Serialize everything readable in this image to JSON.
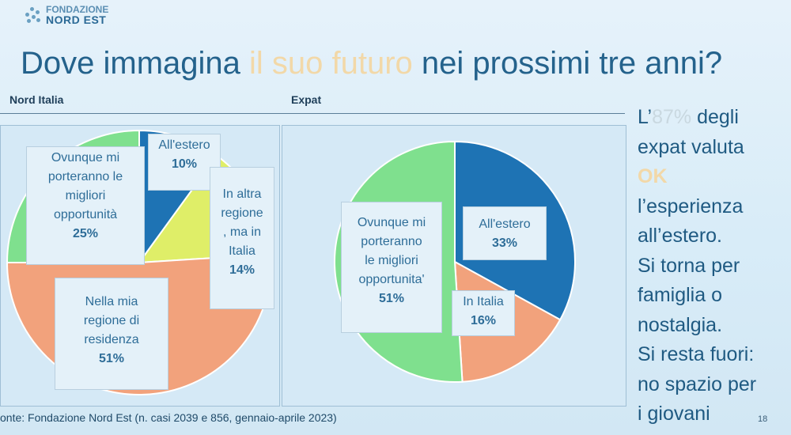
{
  "logo": {
    "line1": "FONDAZIONE",
    "line2a": "NORD",
    "line2b": "EST"
  },
  "title": {
    "part1": "Dove immagina ",
    "highlight": "il suo futuro",
    "part2": " nei prossimi tre anni?"
  },
  "chart_data": [
    {
      "type": "pie",
      "title": "Nord Italia",
      "slices": [
        {
          "label": "All'estero",
          "value": 10,
          "pct_text": "10%",
          "color": "#1e73b4"
        },
        {
          "label": "In altra\nregione\n, ma in\nItalia",
          "value": 14,
          "pct_text": "14%",
          "color": "#dfee68"
        },
        {
          "label": "Nella mia\nregione di\nresidenza",
          "value": 51,
          "pct_text": "51%",
          "color": "#f2a27c"
        },
        {
          "label": "Ovunque mi\nporteranno le\nmigliori\nopportunità",
          "value": 25,
          "pct_text": "25%",
          "color": "#7fe08e"
        }
      ]
    },
    {
      "type": "pie",
      "title": "Expat",
      "slices": [
        {
          "label": "All'estero",
          "value": 33,
          "pct_text": "33%",
          "color": "#1e73b4"
        },
        {
          "label": "In Italia",
          "value": 16,
          "pct_text": "16%",
          "color": "#f2a27c"
        },
        {
          "label": "Ovunque mi\nporteranno\nle migliori\nopportunita'",
          "value": 51,
          "pct_text": "51%",
          "color": "#7fe08e"
        }
      ]
    }
  ],
  "sidebar": {
    "l1a": "L’",
    "l1b": "87%",
    "l1c": " degli",
    "l2": "expat valuta",
    "l3": "OK",
    "l4": "l’esperienza",
    "l5": "all’estero.",
    "l6": "Si torna per",
    "l7": "famiglia o",
    "l8": "nostalgia.",
    "l9": "Si resta fuori:",
    "l10": "no spazio per",
    "l11": "i giovani"
  },
  "source": "onte: Fondazione Nord Est (n. casi 2039 e 856, gennaio-aprile 2023)",
  "page_number": "18"
}
